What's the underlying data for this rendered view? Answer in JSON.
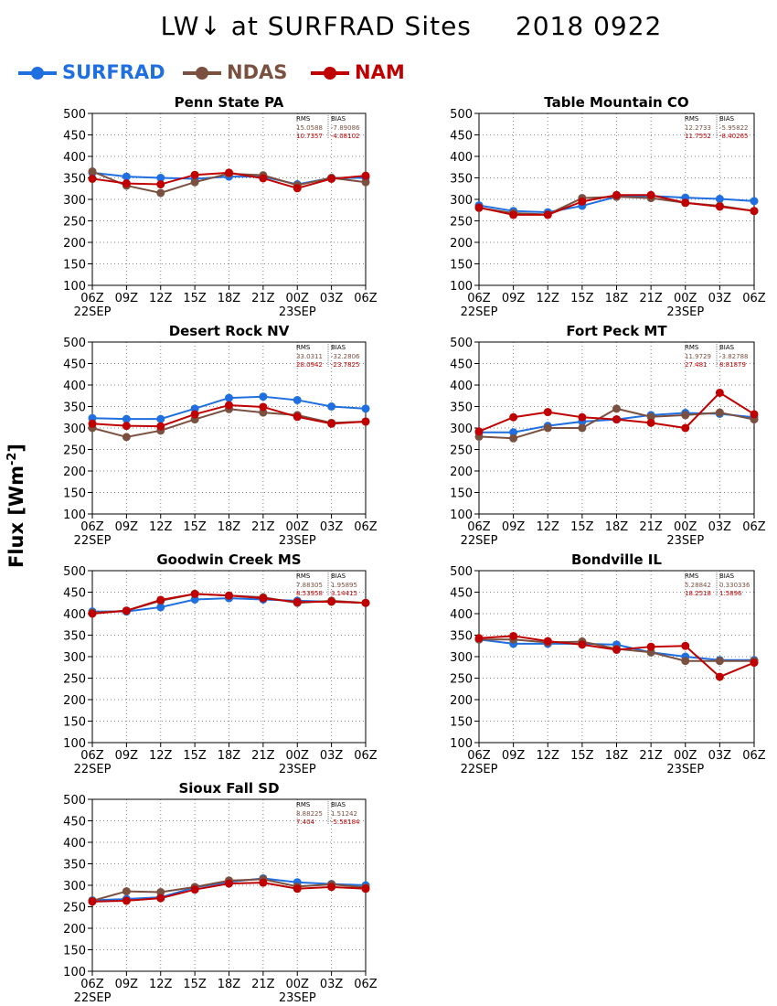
{
  "title": {
    "variable": "LW↓ at SURFRAD Sites",
    "date": "2018 0922"
  },
  "legend": [
    {
      "name": "SURFRAD",
      "color": "#1f6fe0"
    },
    {
      "name": "NDAS",
      "color": "#7a5040"
    },
    {
      "name": "NAM",
      "color": "#c00000"
    }
  ],
  "y_axis_label": {
    "text": "Flux [Wm",
    "sup": "-2",
    "close": "]"
  },
  "chart_data": [
    {
      "type": "line",
      "title": "Penn State PA",
      "x": [
        "06Z",
        "09Z",
        "12Z",
        "15Z",
        "18Z",
        "21Z",
        "00Z",
        "03Z",
        "06Z"
      ],
      "x_date_labels": [
        "22SEP",
        "23SEP"
      ],
      "ylim": [
        100,
        500
      ],
      "yticks": [
        100,
        150,
        200,
        250,
        300,
        350,
        400,
        450,
        500
      ],
      "grid": true,
      "stats": {
        "rms_label": "RMS",
        "bias_label": "BIAS",
        "rows": [
          [
            "15.0588",
            "-7.89086"
          ],
          [
            "10.7357",
            "-4.08102"
          ]
        ]
      },
      "series": [
        {
          "name": "SURFRAD",
          "values": [
            362,
            353,
            350,
            348,
            353,
            353,
            335,
            350,
            350
          ]
        },
        {
          "name": "NDAS",
          "values": [
            365,
            332,
            315,
            340,
            360,
            356,
            333,
            350,
            340
          ]
        },
        {
          "name": "NAM",
          "values": [
            348,
            337,
            335,
            357,
            362,
            349,
            326,
            348,
            355
          ]
        }
      ]
    },
    {
      "type": "line",
      "title": "Table Mountain CO",
      "x": [
        "06Z",
        "09Z",
        "12Z",
        "15Z",
        "18Z",
        "21Z",
        "00Z",
        "03Z",
        "06Z"
      ],
      "x_date_labels": [
        "22SEP",
        "23SEP"
      ],
      "ylim": [
        100,
        500
      ],
      "yticks": [
        100,
        150,
        200,
        250,
        300,
        350,
        400,
        450,
        500
      ],
      "grid": true,
      "stats": {
        "rms_label": "RMS",
        "bias_label": "BIAS",
        "rows": [
          [
            "12.2733",
            "-5.95822"
          ],
          [
            "11.7552",
            "-8.40265"
          ]
        ]
      },
      "series": [
        {
          "name": "SURFRAD",
          "values": [
            286,
            273,
            270,
            285,
            306,
            308,
            304,
            301,
            296
          ]
        },
        {
          "name": "NDAS",
          "values": [
            280,
            268,
            265,
            303,
            306,
            303,
            292,
            285,
            273
          ]
        },
        {
          "name": "NAM",
          "values": [
            281,
            264,
            264,
            295,
            310,
            310,
            292,
            283,
            273
          ]
        }
      ]
    },
    {
      "type": "line",
      "title": "Desert Rock NV",
      "x": [
        "06Z",
        "09Z",
        "12Z",
        "15Z",
        "18Z",
        "21Z",
        "00Z",
        "03Z",
        "06Z"
      ],
      "x_date_labels": [
        "22SEP",
        "23SEP"
      ],
      "ylim": [
        100,
        500
      ],
      "yticks": [
        100,
        150,
        200,
        250,
        300,
        350,
        400,
        450,
        500
      ],
      "grid": true,
      "stats": {
        "rms_label": "RMS",
        "bias_label": "BIAS",
        "rows": [
          [
            "33.0311",
            "-32.2806"
          ],
          [
            "28.0942",
            "-23.7825"
          ]
        ]
      },
      "series": [
        {
          "name": "SURFRAD",
          "values": [
            323,
            321,
            321,
            345,
            370,
            373,
            365,
            350,
            345
          ]
        },
        {
          "name": "NDAS",
          "values": [
            300,
            279,
            294,
            320,
            344,
            336,
            330,
            312,
            315
          ]
        },
        {
          "name": "NAM",
          "values": [
            310,
            305,
            304,
            332,
            353,
            349,
            326,
            310,
            315
          ]
        }
      ]
    },
    {
      "type": "line",
      "title": "Fort Peck MT",
      "x": [
        "06Z",
        "09Z",
        "12Z",
        "15Z",
        "18Z",
        "21Z",
        "00Z",
        "03Z",
        "06Z"
      ],
      "x_date_labels": [
        "22SEP",
        "23SEP"
      ],
      "ylim": [
        100,
        500
      ],
      "yticks": [
        100,
        150,
        200,
        250,
        300,
        350,
        400,
        450,
        500
      ],
      "grid": true,
      "stats": {
        "rms_label": "RMS",
        "bias_label": "BIAS",
        "rows": [
          [
            "11.9729",
            "-3.82788"
          ],
          [
            "27.481",
            "8.81879"
          ]
        ]
      },
      "series": [
        {
          "name": "SURFRAD",
          "values": [
            290,
            290,
            305,
            315,
            320,
            330,
            335,
            333,
            325
          ]
        },
        {
          "name": "NDAS",
          "values": [
            280,
            276,
            300,
            300,
            345,
            326,
            330,
            336,
            320
          ]
        },
        {
          "name": "NAM",
          "values": [
            292,
            325,
            337,
            325,
            320,
            312,
            300,
            382,
            332
          ]
        }
      ]
    },
    {
      "type": "line",
      "title": "Goodwin Creek MS",
      "x": [
        "06Z",
        "09Z",
        "12Z",
        "15Z",
        "18Z",
        "21Z",
        "00Z",
        "03Z",
        "06Z"
      ],
      "x_date_labels": [
        "22SEP",
        "23SEP"
      ],
      "ylim": [
        100,
        500
      ],
      "yticks": [
        100,
        150,
        200,
        250,
        300,
        350,
        400,
        450,
        500
      ],
      "grid": true,
      "stats": {
        "rms_label": "RMS",
        "bias_label": "BIAS",
        "rows": [
          [
            "7.88305",
            "1.95895"
          ],
          [
            "8.53958",
            "3.14415"
          ]
        ]
      },
      "series": [
        {
          "name": "SURFRAD",
          "values": [
            405,
            405,
            415,
            433,
            436,
            433,
            430,
            428,
            425
          ]
        },
        {
          "name": "NDAS",
          "values": [
            402,
            407,
            430,
            446,
            442,
            438,
            425,
            430,
            425
          ]
        },
        {
          "name": "NAM",
          "values": [
            400,
            407,
            432,
            446,
            442,
            436,
            427,
            428,
            425
          ]
        }
      ]
    },
    {
      "type": "line",
      "title": "Bondville IL",
      "x": [
        "06Z",
        "09Z",
        "12Z",
        "15Z",
        "18Z",
        "21Z",
        "00Z",
        "03Z",
        "06Z"
      ],
      "x_date_labels": [
        "22SEP",
        "23SEP"
      ],
      "ylim": [
        100,
        500
      ],
      "yticks": [
        100,
        150,
        200,
        250,
        300,
        350,
        400,
        450,
        500
      ],
      "grid": true,
      "stats": {
        "rms_label": "RMS",
        "bias_label": "BIAS",
        "rows": [
          [
            "5.28842",
            "0.330336"
          ],
          [
            "18.2518",
            "1.5896"
          ]
        ]
      },
      "series": [
        {
          "name": "SURFRAD",
          "values": [
            340,
            330,
            330,
            330,
            328,
            310,
            300,
            292,
            292
          ]
        },
        {
          "name": "NDAS",
          "values": [
            340,
            340,
            333,
            335,
            318,
            310,
            290,
            290,
            290
          ]
        },
        {
          "name": "NAM",
          "values": [
            343,
            348,
            336,
            328,
            316,
            323,
            325,
            253,
            286
          ]
        }
      ]
    },
    {
      "type": "line",
      "title": "Sioux Fall SD",
      "x": [
        "06Z",
        "09Z",
        "12Z",
        "15Z",
        "18Z",
        "21Z",
        "00Z",
        "03Z",
        "06Z"
      ],
      "x_date_labels": [
        "22SEP",
        "23SEP"
      ],
      "ylim": [
        100,
        500
      ],
      "yticks": [
        100,
        150,
        200,
        250,
        300,
        350,
        400,
        450,
        500
      ],
      "grid": true,
      "stats": {
        "rms_label": "RMS",
        "bias_label": "BIAS",
        "rows": [
          [
            "8.88225",
            "1.51242"
          ],
          [
            "7.404",
            "-5.58184"
          ]
        ]
      },
      "series": [
        {
          "name": "SURFRAD",
          "values": [
            265,
            268,
            272,
            295,
            308,
            316,
            307,
            303,
            300
          ]
        },
        {
          "name": "NDAS",
          "values": [
            264,
            286,
            284,
            296,
            311,
            314,
            297,
            302,
            295
          ]
        },
        {
          "name": "NAM",
          "values": [
            262,
            264,
            270,
            290,
            304,
            306,
            292,
            296,
            292
          ]
        }
      ]
    }
  ]
}
